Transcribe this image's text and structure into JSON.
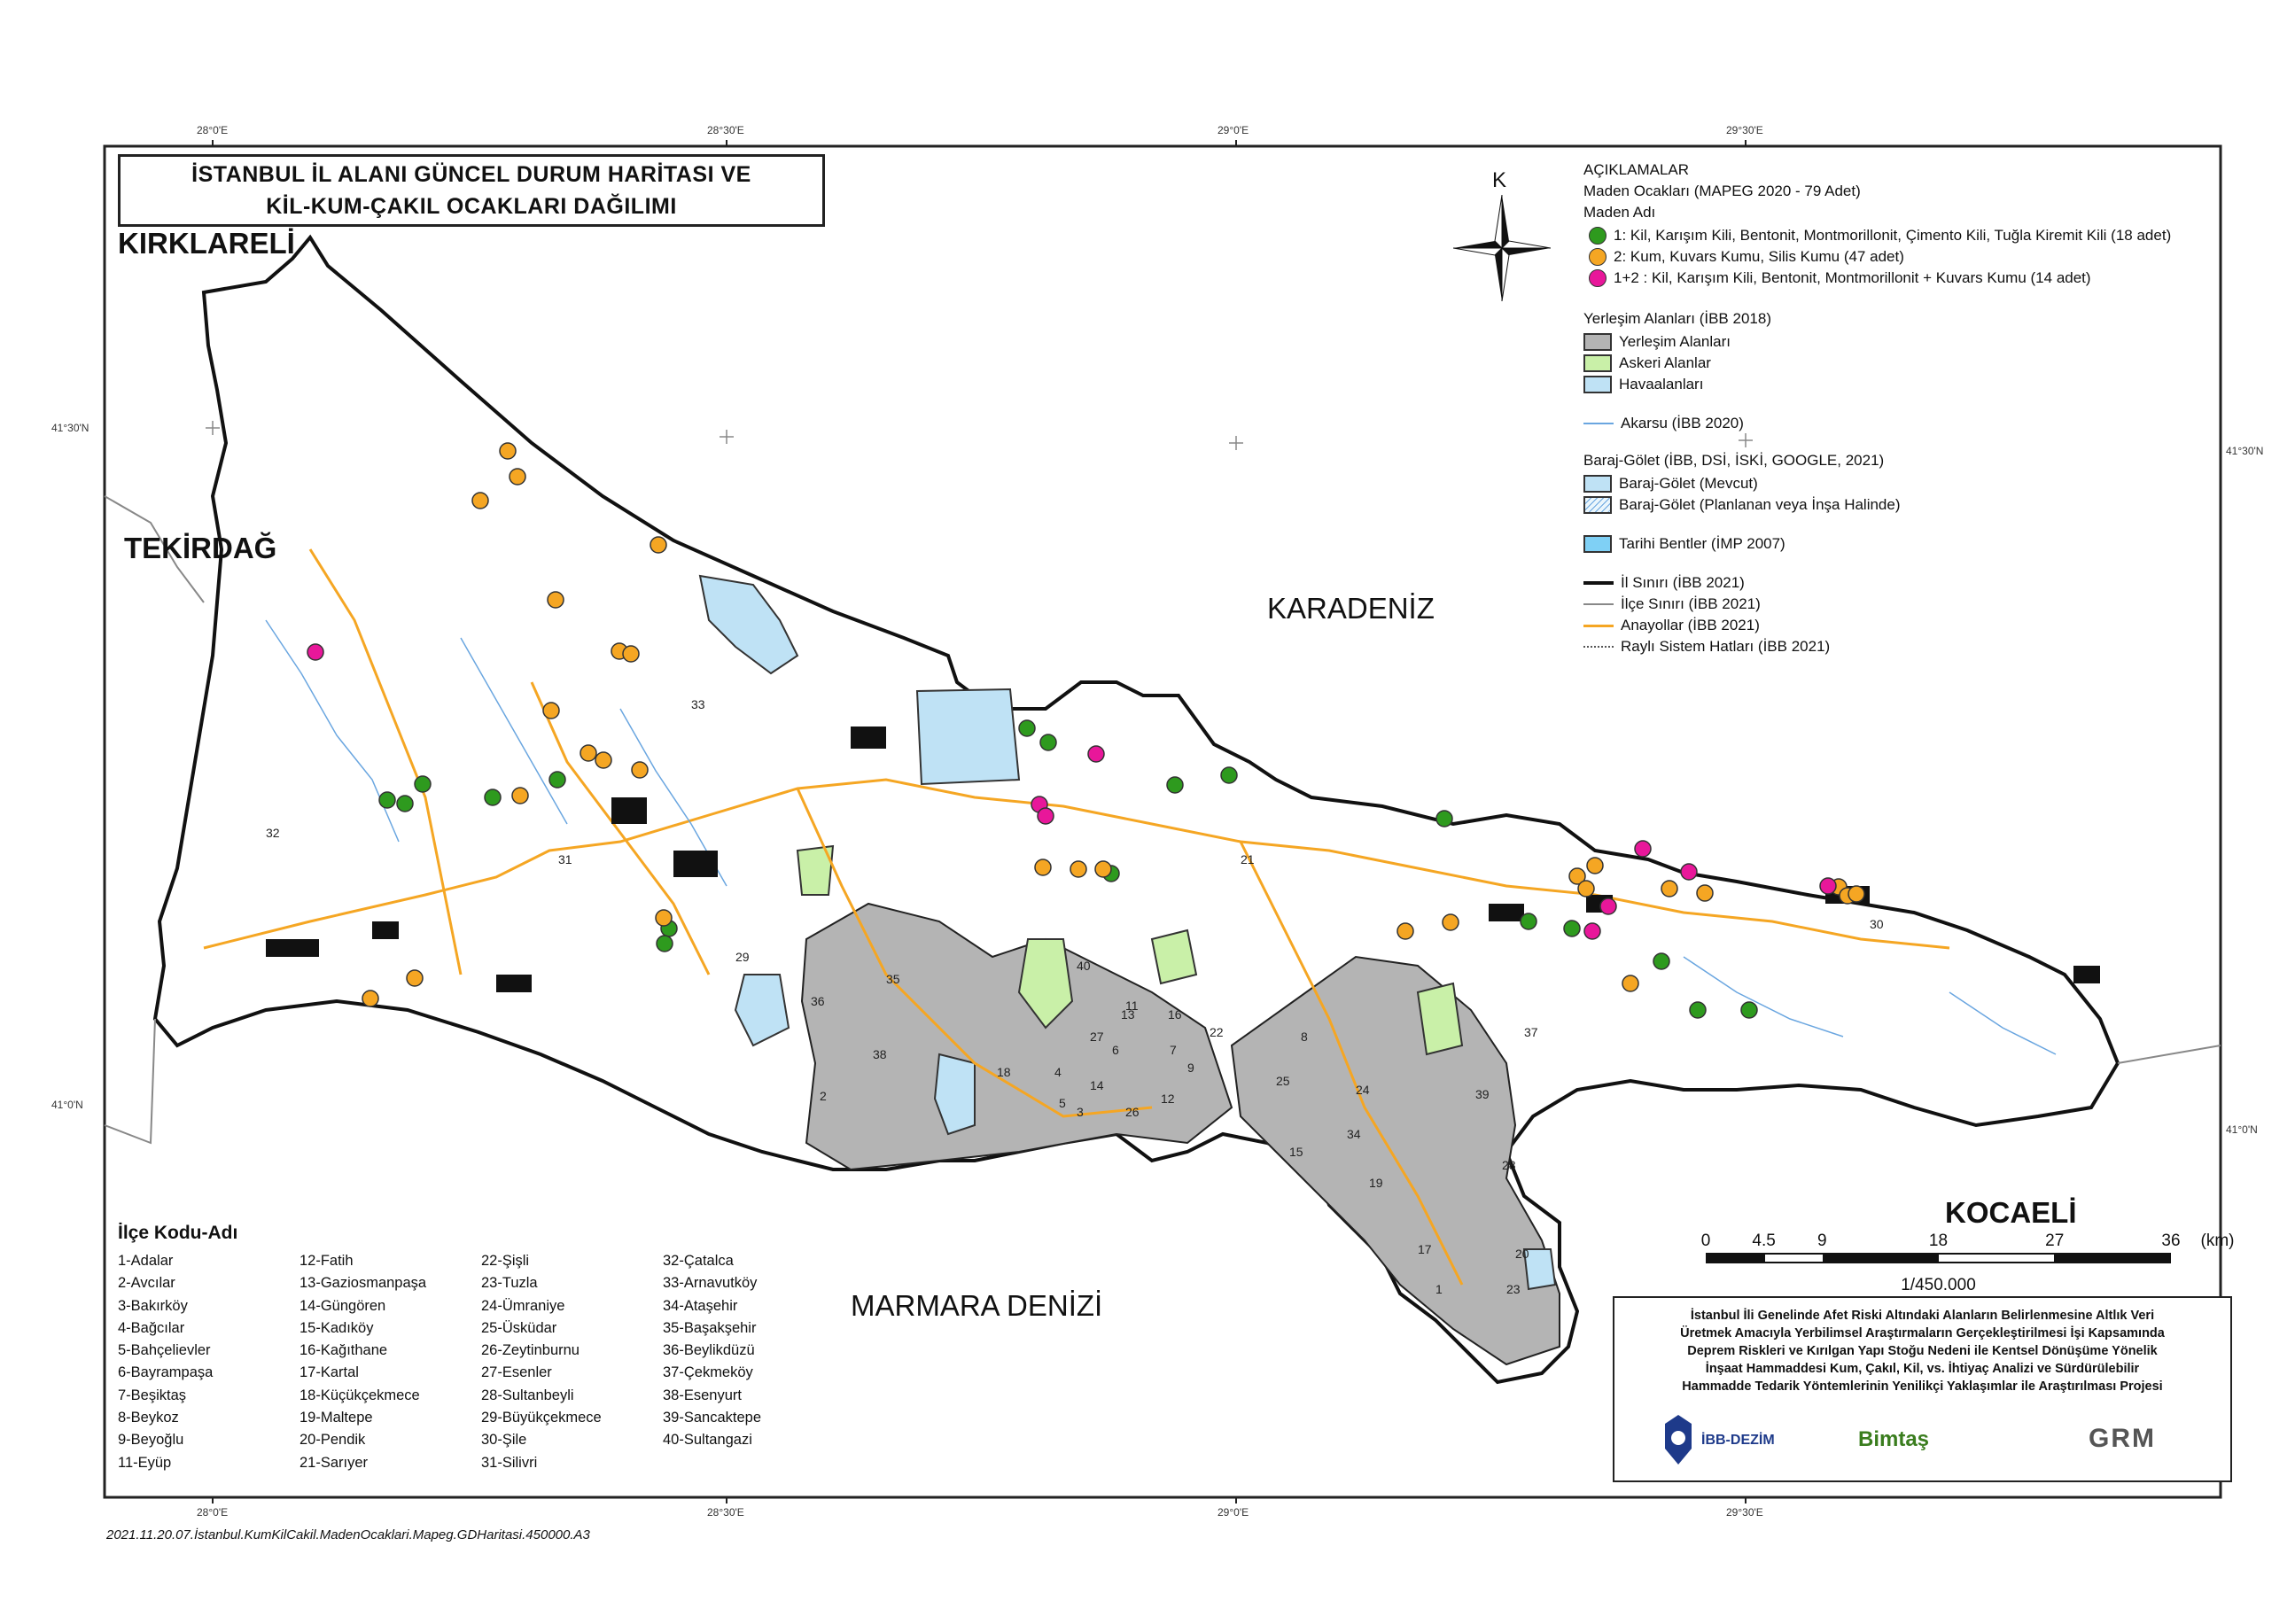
{
  "title": {
    "line1": "İSTANBUL İL ALANI GÜNCEL DURUM HARİTASI VE",
    "line2": "KİL-KUM-ÇAKIL OCAKLARI DAĞILIMI"
  },
  "regions": {
    "kirklareli": "KIRKLARELİ",
    "tekirdag": "TEKİRDAĞ",
    "karadeniz": "KARADENİZ",
    "marmara": "MARMARA DENİZİ",
    "kocaeli": "KOCAELİ"
  },
  "north_label": "K",
  "coords": {
    "top": [
      "28°0'E",
      "28°30'E",
      "29°0'E",
      "29°30'E"
    ],
    "bottom": [
      "28°0'E",
      "28°30'E",
      "29°0'E",
      "29°30'E"
    ],
    "left": [
      "41°30'N",
      "41°0'N"
    ],
    "right": [
      "41°30'N",
      "41°0'N"
    ]
  },
  "legend": {
    "heading": "AÇIKLAMALAR",
    "mines_title": "Maden Ocakları (MAPEG 2020 - 79 Adet)",
    "mine_name_title": "Maden Adı",
    "mines": [
      {
        "label": "1: Kil, Karışım Kili, Bentonit, Montmorillonit, Çimento Kili, Tuğla Kiremit Kili (18 adet)",
        "color": "#2e9a1e"
      },
      {
        "label": "2: Kum, Kuvars Kumu, Silis Kumu (47 adet)",
        "color": "#f5a623"
      },
      {
        "label": "1+2 : Kil, Karışım Kili, Bentonit, Montmorillonit + Kuvars Kumu (14 adet)",
        "color": "#e8179a"
      }
    ],
    "settlement_title": "Yerleşim Alanları (İBB 2018)",
    "settlement": [
      {
        "label": "Yerleşim Alanları",
        "color": "#b4b4b4"
      },
      {
        "label": "Askeri Alanlar",
        "color": "#c9f0a8"
      },
      {
        "label": "Havaalanları",
        "color": "#bfe2f5"
      }
    ],
    "river": "Akarsu (İBB 2020)",
    "dam_title": "Baraj-Gölet (İBB, DSİ, İSKİ, GOOGLE, 2021)",
    "dams": [
      {
        "label": "Baraj-Gölet (Mevcut)",
        "color": "#bfe2f5"
      },
      {
        "label": "Baraj-Gölet (Planlanan veya İnşa Halinde)",
        "color": "#eaf6fc"
      }
    ],
    "historic": {
      "label": "Tarihi Bentler (İMP 2007)",
      "color": "#7fd0f5"
    },
    "lines": [
      {
        "label": "İl Sınırı (İBB 2021)",
        "color": "#111111"
      },
      {
        "label": "İlçe Sınırı (İBB 2021)",
        "color": "#888888"
      },
      {
        "label": "Anayollar (İBB 2021)",
        "color": "#f5a623"
      },
      {
        "label": "Raylı Sistem Hatları (İBB 2021)",
        "color": "#555555"
      }
    ]
  },
  "districts": {
    "title": "İlçe Kodu-Adı",
    "columns": [
      [
        "1-Adalar",
        "2-Avcılar",
        "3-Bakırköy",
        "4-Bağcılar",
        "5-Bahçelievler",
        "6-Bayrampaşa",
        "7-Beşiktaş",
        "8-Beykoz",
        "9-Beyoğlu",
        "11-Eyüp"
      ],
      [
        "12-Fatih",
        "13-Gaziosmanpaşa",
        "14-Güngören",
        "15-Kadıköy",
        "16-Kağıthane",
        "17-Kartal",
        "18-Küçükçekmece",
        "19-Maltepe",
        "20-Pendik",
        "21-Sarıyer"
      ],
      [
        "22-Şişli",
        "23-Tuzla",
        "24-Ümraniye",
        "25-Üsküdar",
        "26-Zeytinburnu",
        "27-Esenler",
        "28-Sultanbeyli",
        "29-Büyükçekmece",
        "30-Şile",
        "31-Silivri"
      ],
      [
        "32-Çatalca",
        "33-Arnavutköy",
        "34-Ataşehir",
        "35-Başakşehir",
        "36-Beylikdüzü",
        "37-Çekmeköy",
        "38-Esenyurt",
        "39-Sancaktepe",
        "40-Sultangazi"
      ]
    ]
  },
  "scale": {
    "ticks": [
      "0",
      "4.5",
      "9",
      "18",
      "27",
      "36"
    ],
    "unit": "(km)",
    "ratio": "1/450.000"
  },
  "project": {
    "lines": [
      "İstanbul İli Genelinde Afet Riski Altındaki Alanların Belirlenmesine Altlık Veri",
      "Üretmek Amacıyla Yerbilimsel Araştırmaların Gerçekleştirilmesi İşi Kapsamında",
      "Deprem Riskleri ve Kırılgan Yapı Stoğu Nedeni ile Kentsel Dönüşüme Yönelik",
      "İnşaat Hammaddesi Kum, Çakıl, Kil, vs. İhtiyaç Analizi ve Sürdürülebilir",
      "Hammadde Tedarik Yöntemlerinin Yenilikçi Yaklaşımlar ile Araştırılması Projesi"
    ],
    "logo1": "İBB-DEZİM",
    "logo2": "Bimtaş",
    "logo3": "GRM"
  },
  "district_codes": [
    "1",
    "2",
    "3",
    "4",
    "5",
    "6",
    "7",
    "8",
    "9",
    "11",
    "12",
    "13",
    "14",
    "15",
    "16",
    "17",
    "18",
    "19",
    "20",
    "21",
    "22",
    "23",
    "24",
    "25",
    "26",
    "27",
    "28",
    "29",
    "30",
    "31",
    "32",
    "33",
    "34",
    "35",
    "36",
    "37",
    "38",
    "39",
    "40"
  ],
  "footer": "2021.11.20.07.İstanbul.KumKilCakil.MadenOcaklari.Mapeg.GDHaritasi.450000.A3"
}
